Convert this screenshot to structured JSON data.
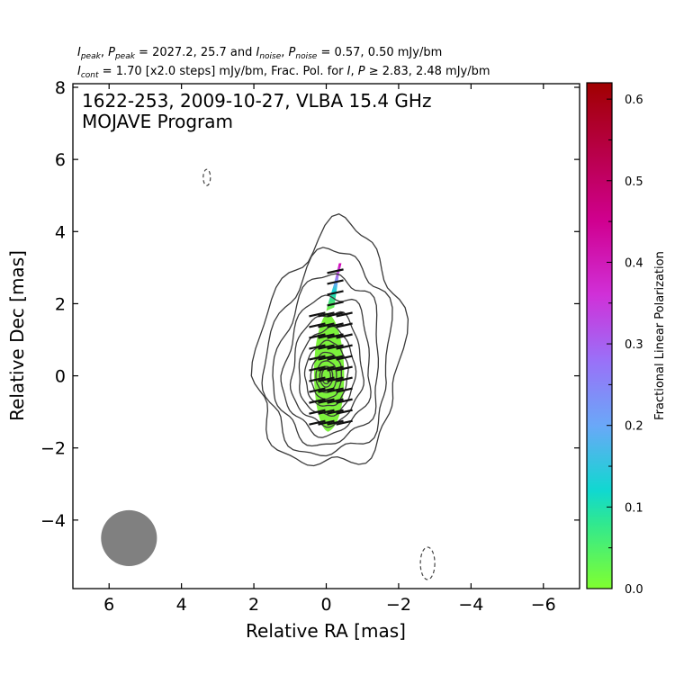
{
  "header": {
    "line1": {
      "a": "I",
      "a_sub": "peak",
      "b": ", ",
      "c": "P",
      "c_sub": "peak",
      "d": " = 2027.2, 25.7 and ",
      "e": "I",
      "e_sub": "noise",
      "f": ", ",
      "g": "P",
      "g_sub": "noise",
      "h": " = 0.57, 0.50 mJy/bm"
    },
    "line2": {
      "a": "I",
      "a_sub": "cont",
      "b": " = 1.70 [x2.0 steps] mJy/bm, Frac. Pol. for ",
      "c": "I",
      "d": ", ",
      "e": "P",
      "f": " ≥ 2.83, 2.48 mJy/bm"
    }
  },
  "chart_data": {
    "type": "contour",
    "title_line1": "1622-253, 2009-10-27, VLBA 15.4 GHz",
    "title_line2": "MOJAVE Program",
    "xlabel": "Relative RA [mas]",
    "ylabel": "Relative Dec [mas]",
    "xlim": [
      7,
      -7
    ],
    "ylim": [
      -5.9,
      8.1
    ],
    "xticks": [
      6,
      4,
      2,
      0,
      -2,
      -4,
      -6
    ],
    "xtick_labels": [
      "6",
      "4",
      "2",
      "0",
      "−2",
      "−4",
      "−6"
    ],
    "yticks": [
      -4,
      -2,
      0,
      2,
      4,
      6,
      8
    ],
    "ytick_labels": [
      "−4",
      "−2",
      "0",
      "2",
      "4",
      "6",
      "8"
    ],
    "contours": {
      "center": [
        0,
        0
      ],
      "levels_mjy": [
        1.7,
        3.4,
        6.8,
        13.6,
        27.2,
        54.4,
        108.8,
        217.6,
        435.2,
        870.4,
        1740.8
      ],
      "color": "#3a3a3a"
    },
    "negative_contours": [
      {
        "x": 3.3,
        "y": 5.5
      },
      {
        "x": -2.8,
        "y": -5.2
      }
    ],
    "beam": {
      "x": 5.45,
      "y": -4.5,
      "major_mas": 1.55,
      "minor_mas": 0.55,
      "color": "#808080"
    },
    "polarization": {
      "region_color": "#7cf23c",
      "jet_gradient": [
        "#7cf23c",
        "#3fe07e",
        "#10d6cc",
        "#7a9ff6",
        "#c452e6",
        "#d400b0"
      ],
      "evpa_ticks_dec": [
        -1.3,
        -1.0,
        -0.7,
        -0.4,
        -0.1,
        0.2,
        0.5,
        0.8,
        1.1,
        1.4,
        1.7,
        2.0,
        2.3,
        2.6,
        2.9
      ]
    },
    "colorbar": {
      "label": "Fractional Linear Polarization",
      "min": 0.0,
      "max": 0.62,
      "ticks": [
        0.0,
        0.1,
        0.2,
        0.3,
        0.4,
        0.5,
        0.6
      ],
      "tick_labels": [
        "0.0",
        "0.1",
        "0.2",
        "0.3",
        "0.4",
        "0.5",
        "0.6"
      ],
      "minor_ticks": [
        0.05,
        0.15,
        0.25,
        0.35,
        0.45,
        0.55
      ],
      "stops": [
        {
          "v": 0.0,
          "color": "#80ff30"
        },
        {
          "v": 0.08,
          "color": "#30e890"
        },
        {
          "v": 0.12,
          "color": "#10d8d0"
        },
        {
          "v": 0.2,
          "color": "#6aa8f8"
        },
        {
          "v": 0.28,
          "color": "#9a70f8"
        },
        {
          "v": 0.36,
          "color": "#d030d8"
        },
        {
          "v": 0.45,
          "color": "#d00090"
        },
        {
          "v": 0.62,
          "color": "#a00000"
        }
      ]
    }
  }
}
